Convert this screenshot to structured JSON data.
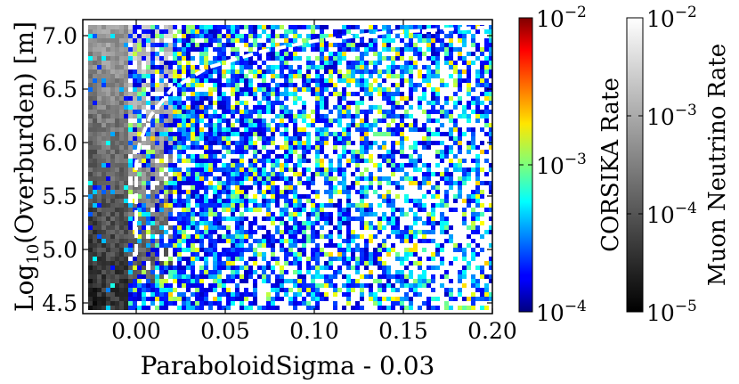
{
  "chart_data": {
    "type": "heatmap",
    "title": "",
    "xlabel": "ParaboloidSigma - 0.03",
    "ylabel": "Log10(Overburden) [m]",
    "ylabel_main": "Log",
    "ylabel_sub": "10",
    "ylabel_rest": "(Overburden) [m]",
    "xlim": [
      -0.03,
      0.2
    ],
    "ylim": [
      4.4,
      7.15
    ],
    "x_ticks": [
      0.0,
      0.05,
      0.1,
      0.15,
      0.2
    ],
    "x_tick_labels": [
      "0.00",
      "0.05",
      "0.10",
      "0.15",
      "0.20"
    ],
    "y_ticks": [
      4.5,
      5.0,
      5.5,
      6.0,
      6.5,
      7.0
    ],
    "y_tick_labels": [
      "4.5",
      "5.0",
      "5.5",
      "6.0",
      "6.5",
      "7.0"
    ],
    "data_x_range": [
      -0.027,
      0.2
    ],
    "data_y_range": [
      4.45,
      7.1
    ],
    "series": [
      {
        "name": "CORSIKA Rate",
        "colormap": "jet",
        "log_range": [
          -4,
          -2
        ]
      },
      {
        "name": "Muon Neutrino Rate",
        "colormap": "gray",
        "log_range": [
          -5,
          -2
        ]
      }
    ],
    "cut_line": {
      "style": "dashed",
      "color": "#ffffff",
      "x": [
        0.0,
        0.0,
        0.0,
        0.002,
        0.008,
        0.02,
        0.04,
        0.07,
        0.1,
        0.14,
        0.2
      ],
      "y": [
        4.95,
        5.5,
        5.8,
        6.0,
        6.25,
        6.5,
        6.7,
        6.85,
        6.95,
        7.03,
        7.08
      ]
    },
    "colorbars": [
      {
        "label": "CORSIKA Rate",
        "colormap": "jet",
        "scale": "log",
        "range": [
          0.0001,
          0.01
        ],
        "ticks": [
          {
            "value": 0.01,
            "base": "10",
            "exp": "−2"
          },
          {
            "value": 0.001,
            "base": "10",
            "exp": "−3"
          },
          {
            "value": 0.0001,
            "base": "10",
            "exp": "−4"
          }
        ]
      },
      {
        "label": "Muon Neutrino Rate",
        "colormap": "gray",
        "scale": "log",
        "range": [
          1e-05,
          0.01
        ],
        "ticks": [
          {
            "value": 0.01,
            "base": "10",
            "exp": "−2"
          },
          {
            "value": 0.001,
            "base": "10",
            "exp": "−3"
          },
          {
            "value": 0.0001,
            "base": "10",
            "exp": "−4"
          },
          {
            "value": 1e-05,
            "base": "10",
            "exp": "−5"
          }
        ]
      }
    ]
  }
}
